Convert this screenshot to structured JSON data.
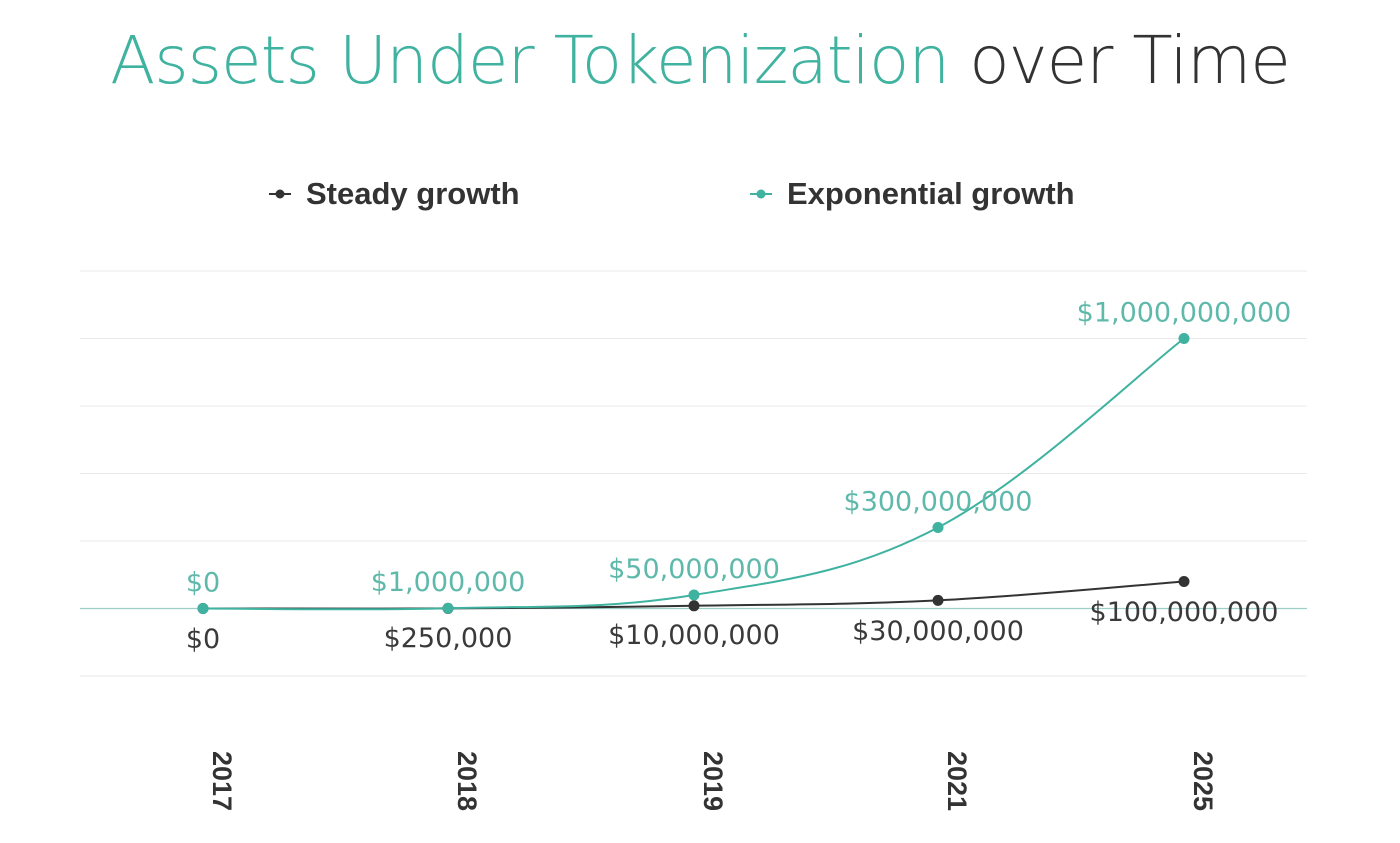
{
  "title": {
    "accent": "Assets Under Tokenization",
    "rest": "over Time"
  },
  "colors": {
    "steady": "#333333",
    "exponential": "#3fb2a0",
    "grid": "#e9e9e9",
    "baseline": "#9ccfc6",
    "axis_text": "#333333",
    "label_dark": "#3a3a3a",
    "label_teal": "#5fb9ab"
  },
  "chart_data": {
    "type": "line",
    "title": "Assets Under Tokenization over Time",
    "categories": [
      "2017",
      "2018",
      "2019",
      "2021",
      "2025"
    ],
    "series": [
      {
        "name": "Steady growth",
        "values": [
          0,
          250000,
          10000000,
          30000000,
          100000000
        ],
        "labels": [
          "$0",
          "$250,000",
          "$10,000,000",
          "$30,000,000",
          "$100,000,000"
        ]
      },
      {
        "name": "Exponential growth",
        "values": [
          0,
          1000000,
          50000000,
          300000000,
          1000000000
        ],
        "labels": [
          "$0",
          "$1,000,000",
          "$50,000,000",
          "$300,000,000",
          "$1,000,000,000"
        ]
      }
    ],
    "ylim": [
      -250000000,
      1250000000
    ],
    "grid": true,
    "legend_position": "top",
    "xlabel": "",
    "ylabel": ""
  }
}
